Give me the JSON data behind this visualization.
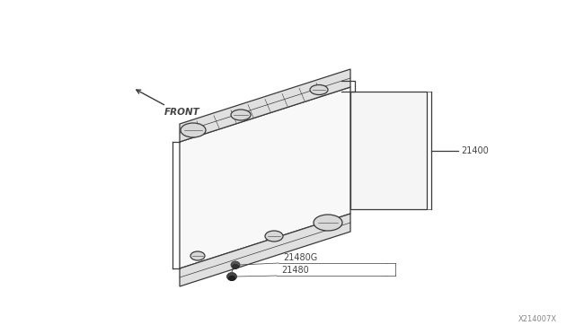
{
  "background_color": "#ffffff",
  "line_color": "#3a3a3a",
  "fin_color": "#aaaaaa",
  "tank_color": "#dddddd",
  "label_color": "#444444",
  "watermark": "X214007X",
  "front_label": "FRONT",
  "label_21400": "21400",
  "label_21480G": "21480G",
  "label_21480": "21480",
  "font_size": 7,
  "watermark_fontsize": 6
}
